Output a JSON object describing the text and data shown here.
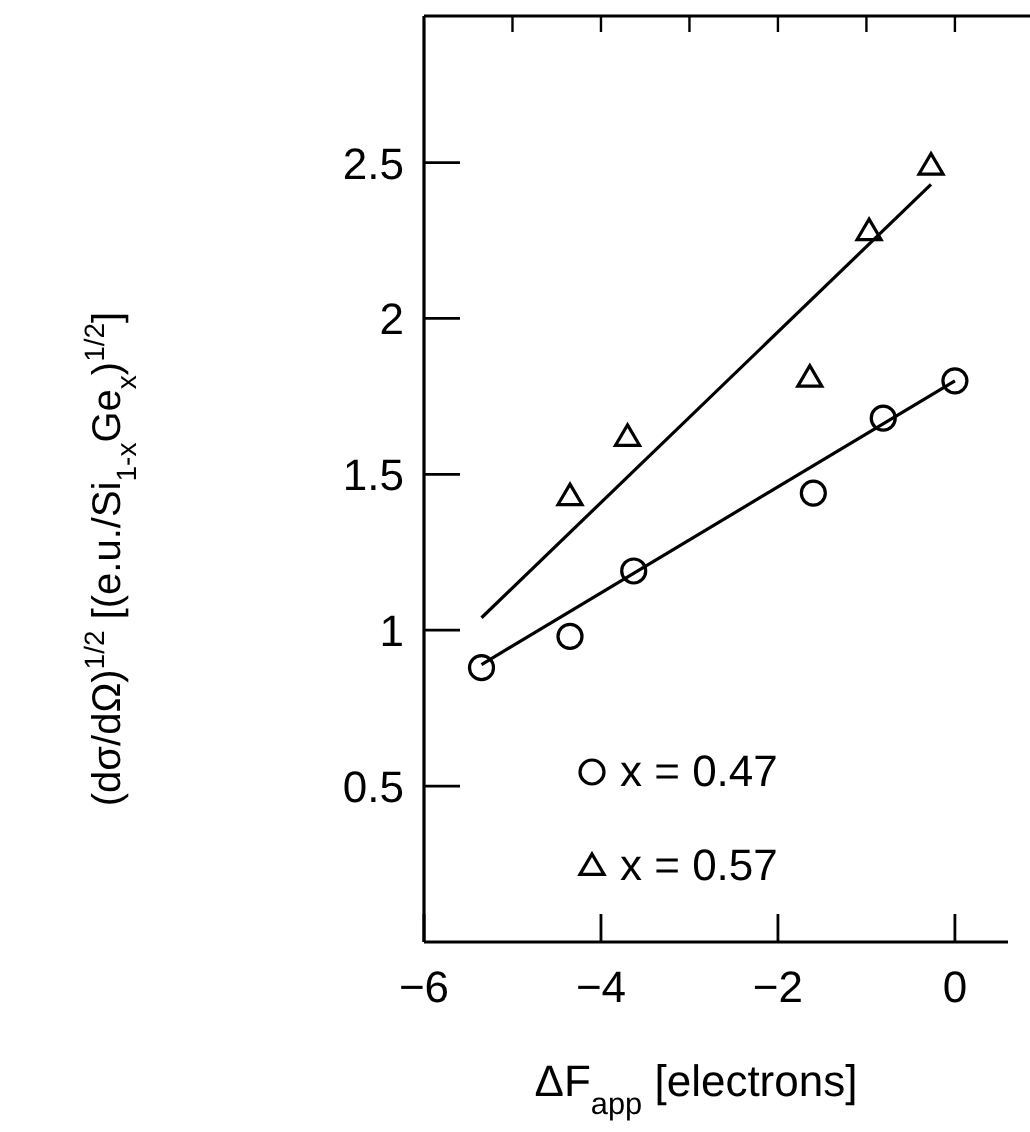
{
  "chart_data": {
    "type": "scatter",
    "xlabel": "ΔF$_{app}$ [electrons]",
    "ylabel": "(dσ/dΩ)$^{1/2}$ [(e.u./Si$_{1-x}$Ge$_{x}$)$^{1/2}$]",
    "xlim": [
      -6,
      0.6
    ],
    "ylim": [
      0,
      2.97
    ],
    "xticks": [
      -6,
      {
        "value": -5,
        "label": null
      },
      -4,
      {
        "value": -3,
        "label": null
      },
      -2,
      {
        "value": -1,
        "label": null
      },
      0
    ],
    "yticks": [
      0.5,
      1,
      1.5,
      2,
      2.5
    ],
    "grid": false,
    "legend": "bottom",
    "series": [
      {
        "name": "x = 0.47",
        "color": "#000000",
        "marker": "circle",
        "x": [
          -5.35,
          -4.35,
          -3.63,
          -1.6,
          -0.81,
          0
        ],
        "values": [
          0.88,
          0.98,
          1.19,
          1.44,
          1.68,
          1.8
        ]
      },
      {
        "name": "x = 0.57",
        "color": "#000000",
        "marker": "triangle",
        "x": [
          -4.35,
          -3.7,
          -1.64,
          -0.97,
          -0.27
        ],
        "values": [
          1.43,
          1.62,
          1.81,
          2.28,
          2.49
        ]
      },
      {
        "type": "line",
        "color": "#000000",
        "x": [
          -5.35,
          -0.27
        ],
        "values": [
          1.04,
          2.43
        ]
      },
      {
        "type": "line",
        "color": "#000000",
        "x": [
          -5.35,
          0
        ],
        "values": [
          0.89,
          1.8
        ]
      }
    ]
  }
}
